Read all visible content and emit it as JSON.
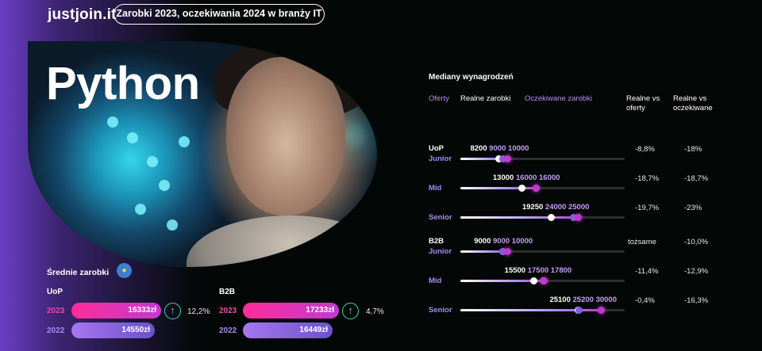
{
  "header": {
    "logo": "justjoin.it",
    "title": "Zarobki 2023, oczekiwania 2024 w branży IT"
  },
  "hero": {
    "language": "Python"
  },
  "averages": {
    "label": "Średnie zarobki",
    "uop": {
      "title": "UoP",
      "y2023": "2023",
      "v2023": "16333zł",
      "y2022": "2022",
      "v2022": "14550zł",
      "change": "12,2%"
    },
    "b2b": {
      "title": "B2B",
      "y2023": "2023",
      "v2023": "17233zł",
      "y2022": "2022",
      "v2022": "16449zł",
      "change": "4,7%"
    }
  },
  "medians": {
    "title": "Mediany wynagrodzeń",
    "headers": {
      "offers": "Oferty",
      "real": "Realne zarobki",
      "expected": "Oczekiwane zarobki",
      "real_vs_offers": "Realne vs oferty",
      "real_vs_expected": "Realne vs oczekiwane"
    },
    "uop": {
      "label": "UoP",
      "rows": [
        {
          "level": "Junior",
          "real": "8200",
          "offer": "9000",
          "expected": "10000",
          "vs_offers": "-8,8%",
          "vs_expected": "-18%",
          "r": 8200,
          "o": 9000,
          "e": 10000
        },
        {
          "level": "Mid",
          "real": "13000",
          "offer": "16000",
          "expected": "16000",
          "vs_offers": "-18,7%",
          "vs_expected": "-18,7%",
          "r": 13000,
          "o": 16000,
          "e": 16000
        },
        {
          "level": "Senior",
          "real": "19250",
          "offer": "24000",
          "expected": "25000",
          "vs_offers": "-19,7%",
          "vs_expected": "-23%",
          "r": 19250,
          "o": 24000,
          "e": 25000
        }
      ]
    },
    "b2b": {
      "label": "B2B",
      "rows": [
        {
          "level": "Junior",
          "real": "9000",
          "offer": "9000",
          "expected": "10000",
          "vs_offers": "tożsame",
          "vs_expected": "-10,0%",
          "r": 9000,
          "o": 9000,
          "e": 10000
        },
        {
          "level": "Mid",
          "real": "15500",
          "offer": "17500",
          "expected": "17800",
          "vs_offers": "-11,4%",
          "vs_expected": "-12,9%",
          "r": 15500,
          "o": 17500,
          "e": 17800
        },
        {
          "level": "Senior",
          "real": "25100",
          "offer": "25200",
          "expected": "30000",
          "vs_offers": "-0,4%",
          "vs_expected": "-16,3%",
          "r": 25100,
          "o": 25200,
          "e": 30000
        }
      ]
    },
    "scale_max": 35000
  }
}
